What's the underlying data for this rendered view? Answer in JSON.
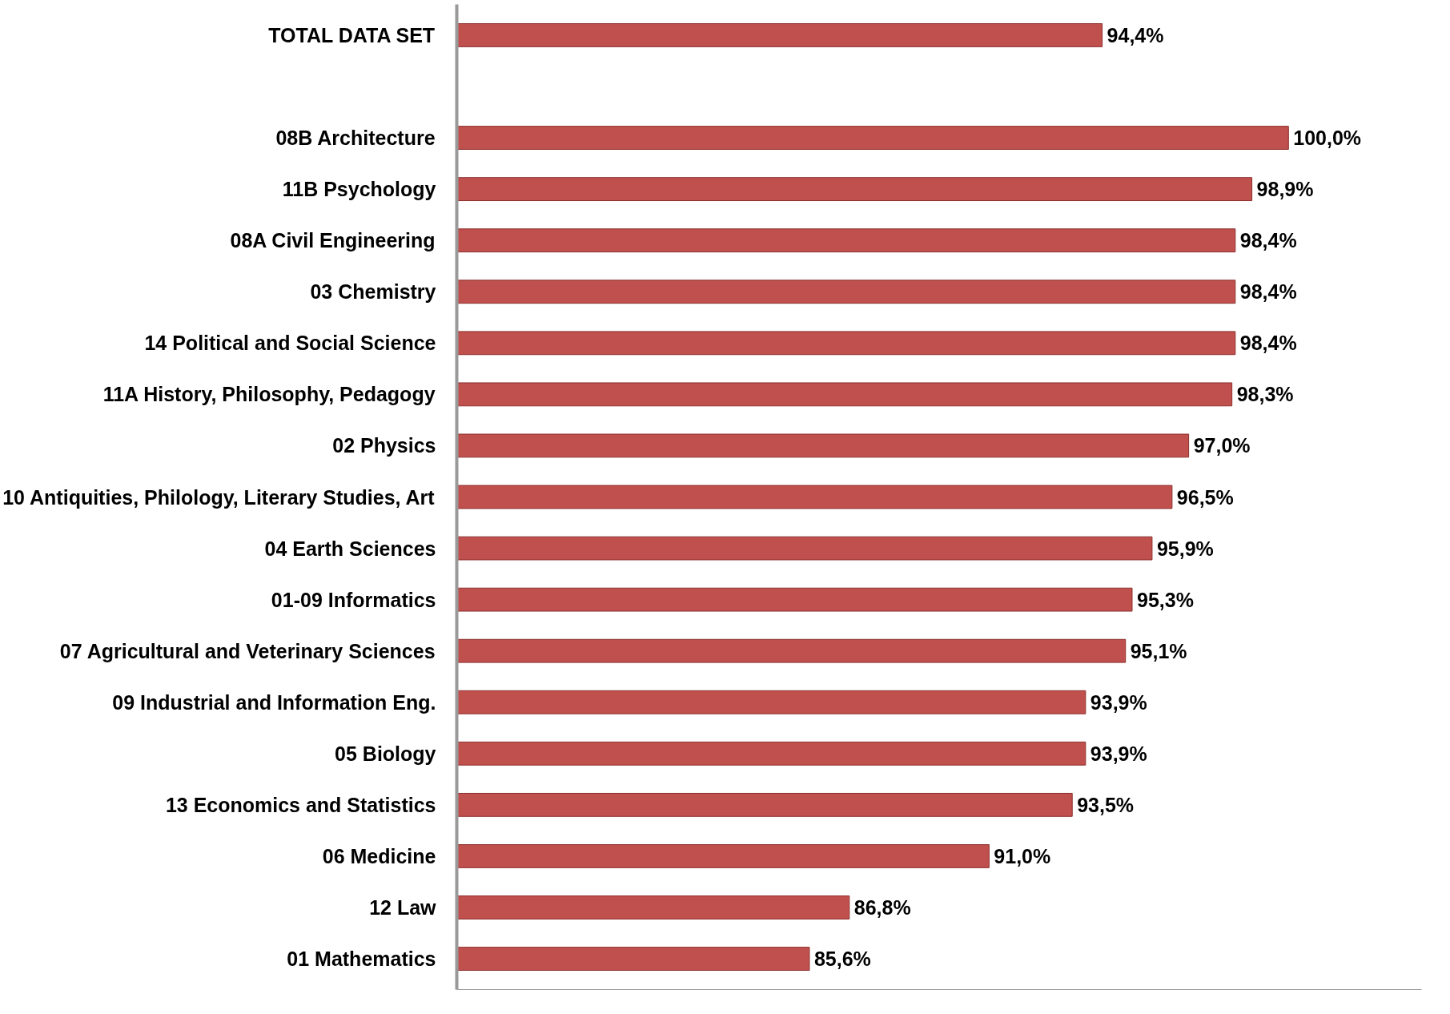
{
  "chart_data": {
    "type": "bar",
    "orientation": "horizontal",
    "categories": [
      "TOTAL DATA SET",
      null,
      "08B Architecture",
      "11B Psychology",
      "08A Civil Engineering",
      "03 Chemistry",
      "14 Political and Social Science",
      "11A History, Philosophy, Pedagogy",
      "02 Physics",
      "10 Antiquities, Philology, Literary Studies, Art",
      "04 Earth Sciences",
      "01-09 Informatics",
      "07 Agricultural and Veterinary Sciences",
      "09 Industrial and Information Eng.",
      "05 Biology",
      "13 Economics and Statistics",
      "06 Medicine",
      "12 Law",
      "01 Mathematics"
    ],
    "values": [
      94.4,
      null,
      100.0,
      98.9,
      98.4,
      98.4,
      98.4,
      98.3,
      97.0,
      96.5,
      95.9,
      95.3,
      95.1,
      93.9,
      93.9,
      93.5,
      91.0,
      86.8,
      85.6
    ],
    "value_labels": [
      "94,4%",
      null,
      "100,0%",
      "98,9%",
      "98,4%",
      "98,4%",
      "98,4%",
      "98,3%",
      "97,0%",
      "96,5%",
      "95,9%",
      "95,3%",
      "95,1%",
      "93,9%",
      "93,9%",
      "93,5%",
      "91,0%",
      "86,8%",
      "85,6%"
    ],
    "color": "#c0504d",
    "xlim": [
      75,
      104
    ],
    "tick_labels": "y",
    "grid": false
  }
}
